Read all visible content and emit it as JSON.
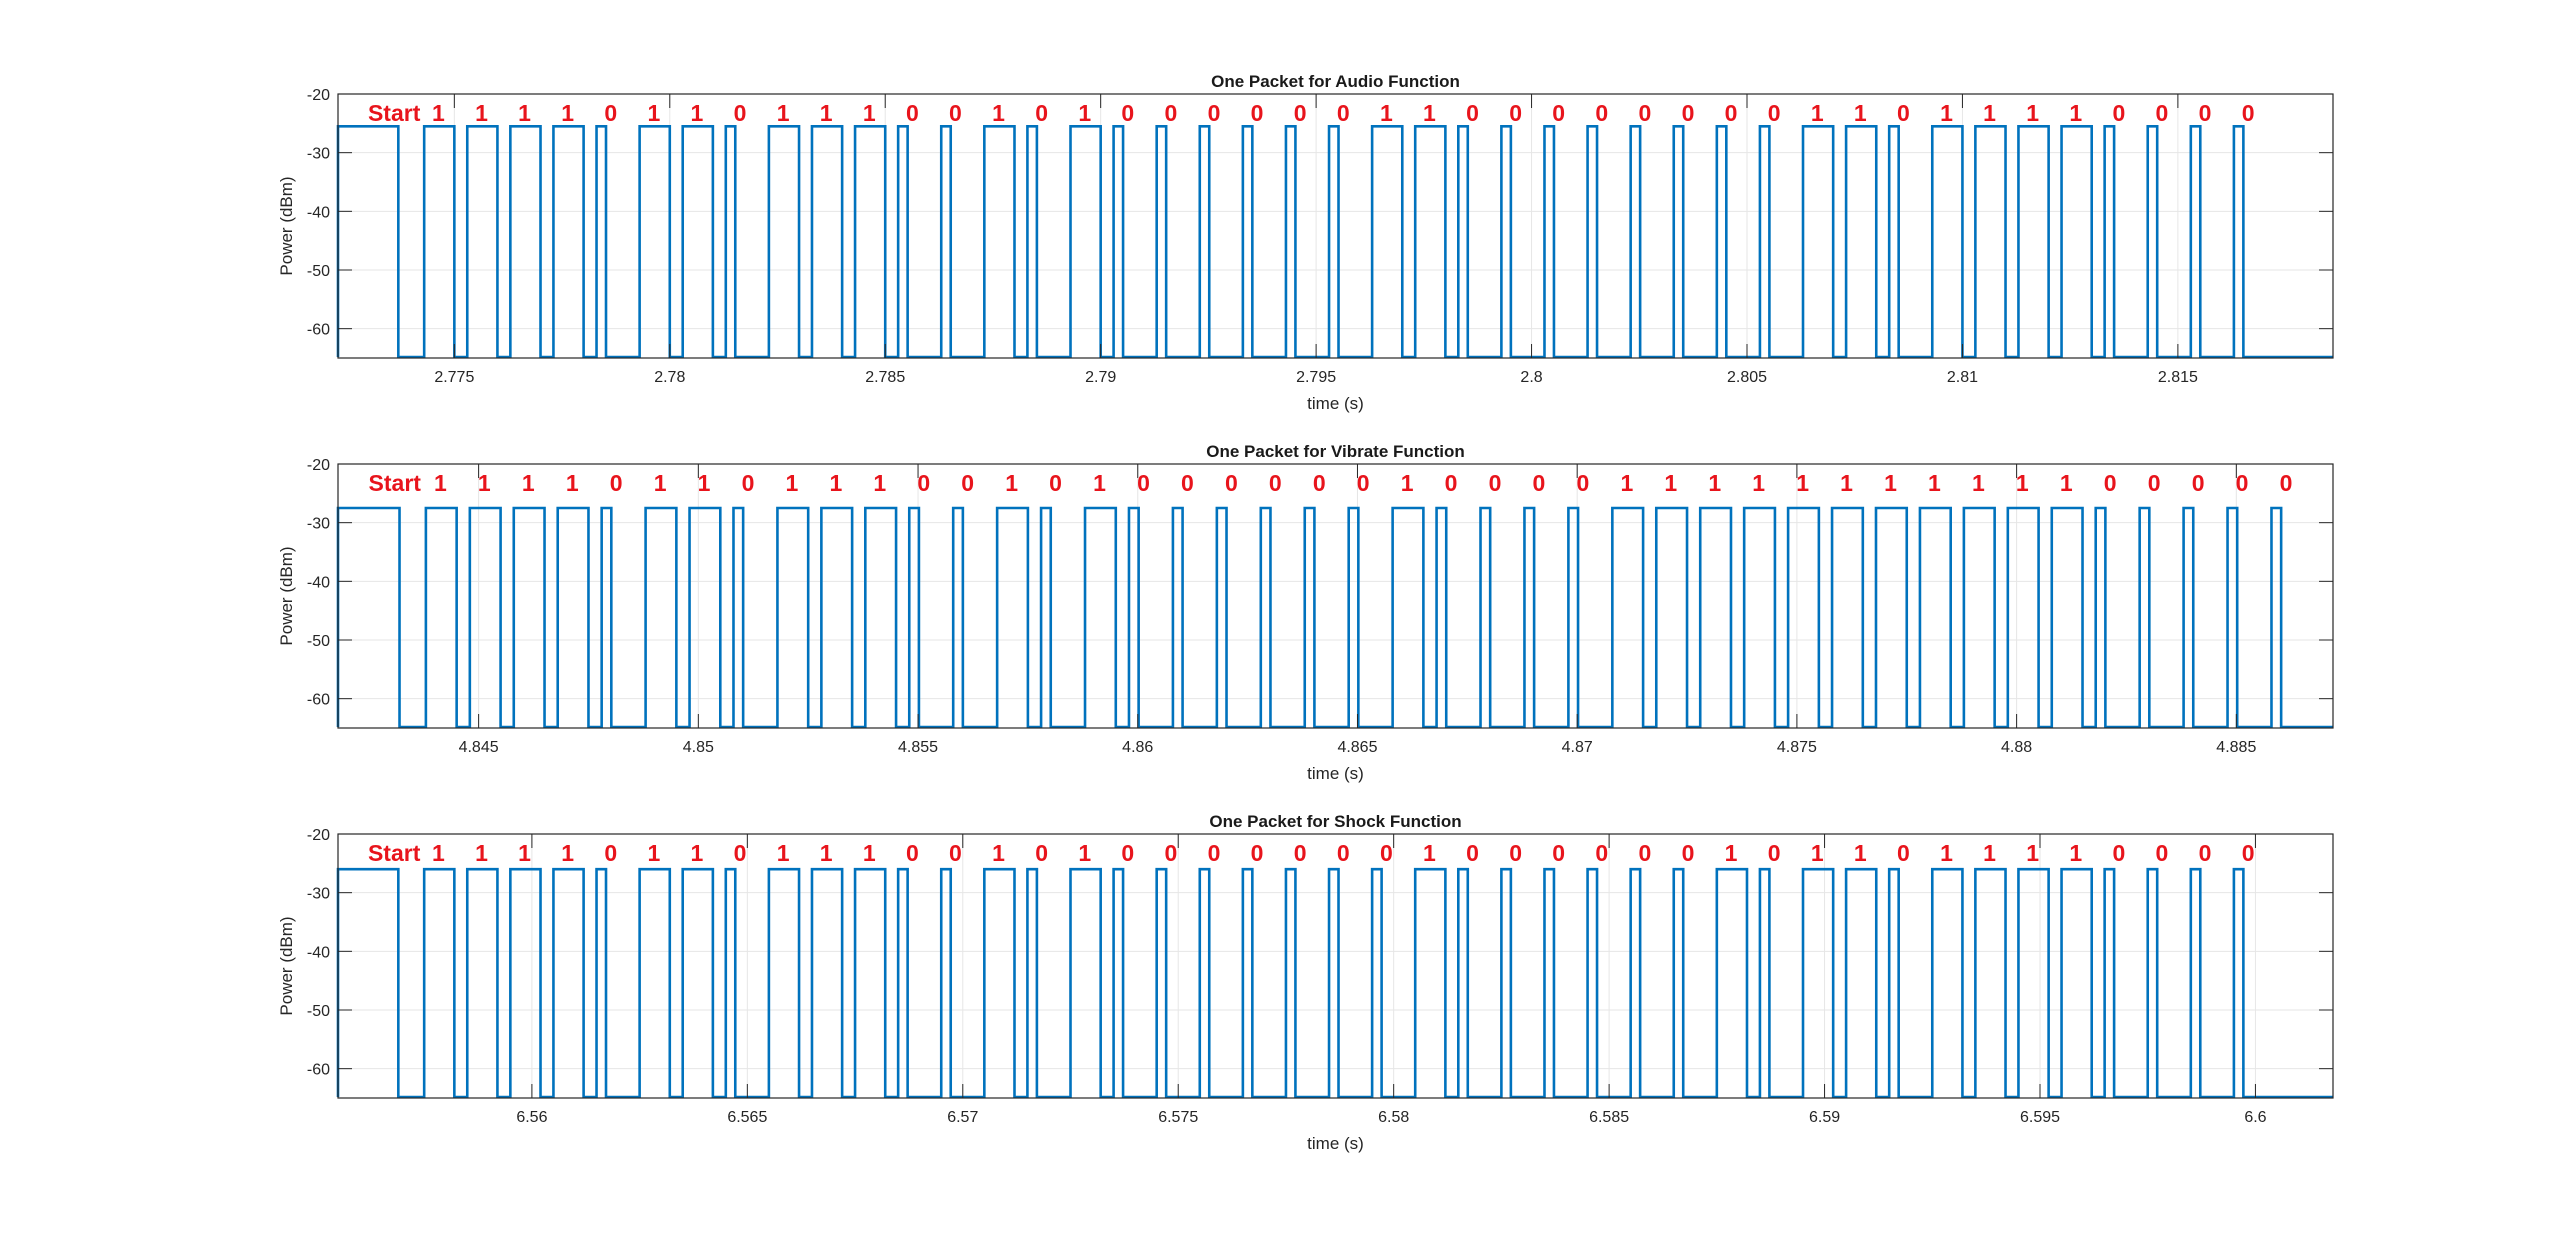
{
  "chart_data": [
    {
      "type": "line",
      "title": "One Packet for Audio Function",
      "xlabel": "time (s)",
      "ylabel": "Power (dBm)",
      "xlim": [
        2.7723,
        2.8186
      ],
      "ylim": [
        -65,
        -20
      ],
      "xticks": [
        2.775,
        2.78,
        2.785,
        2.79,
        2.795,
        2.8,
        2.805,
        2.81,
        2.815
      ],
      "xtick_labels": [
        "2.775",
        "2.78",
        "2.785",
        "2.79",
        "2.795",
        "2.8",
        "2.805",
        "2.81",
        "2.815"
      ],
      "yticks": [
        -60,
        -50,
        -40,
        -30,
        -20
      ],
      "ytick_labels": [
        "-60",
        "-50",
        "-40",
        "-30",
        "-20"
      ],
      "high_level": -25.5,
      "low_level": -65,
      "series_color": "#0072bd",
      "start_label": "Start",
      "start_pulse": [
        2.7723,
        2.7737
      ],
      "bit_period": 0.001,
      "first_bit_time": 2.7743,
      "bits": [
        "1",
        "1",
        "1",
        "1",
        "0",
        "1",
        "1",
        "0",
        "1",
        "1",
        "1",
        "0",
        "0",
        "1",
        "0",
        "1",
        "0",
        "0",
        "0",
        "0",
        "0",
        "0",
        "1",
        "1",
        "0",
        "0",
        "0",
        "0",
        "0",
        "0",
        "0",
        "0",
        "1",
        "1",
        "0",
        "1",
        "1",
        "1",
        "1",
        "0",
        "0",
        "0",
        "0"
      ]
    },
    {
      "type": "line",
      "title": "One Packet for Vibrate Function",
      "xlabel": "time (s)",
      "ylabel": "Power (dBm)",
      "xlim": [
        4.8418,
        4.8872
      ],
      "ylim": [
        -65,
        -20
      ],
      "xticks": [
        4.845,
        4.85,
        4.855,
        4.86,
        4.865,
        4.87,
        4.875,
        4.88,
        4.885
      ],
      "xtick_labels": [
        "4.845",
        "4.85",
        "4.855",
        "4.86",
        "4.865",
        "4.87",
        "4.875",
        "4.88",
        "4.885"
      ],
      "yticks": [
        -60,
        -50,
        -40,
        -30,
        -20
      ],
      "ytick_labels": [
        "-60",
        "-50",
        "-40",
        "-30",
        "-20"
      ],
      "high_level": -27.5,
      "low_level": -65,
      "series_color": "#0072bd",
      "start_label": "Start",
      "start_pulse": [
        4.8418,
        4.8432
      ],
      "bit_period": 0.001,
      "first_bit_time": 4.8438,
      "bits": [
        "1",
        "1",
        "1",
        "1",
        "0",
        "1",
        "1",
        "0",
        "1",
        "1",
        "1",
        "0",
        "0",
        "1",
        "0",
        "1",
        "0",
        "0",
        "0",
        "0",
        "0",
        "0",
        "1",
        "0",
        "0",
        "0",
        "0",
        "1",
        "1",
        "1",
        "1",
        "1",
        "1",
        "1",
        "1",
        "1",
        "1",
        "1",
        "0",
        "0",
        "0",
        "0",
        "0"
      ]
    },
    {
      "type": "line",
      "title": "One Packet for Shock Function",
      "xlabel": "time (s)",
      "ylabel": "Power (dBm)",
      "xlim": [
        6.5555,
        6.6018
      ],
      "ylim": [
        -65,
        -20
      ],
      "xticks": [
        6.56,
        6.565,
        6.57,
        6.575,
        6.58,
        6.585,
        6.59,
        6.595,
        6.6
      ],
      "xtick_labels": [
        "6.56",
        "6.565",
        "6.57",
        "6.575",
        "6.58",
        "6.585",
        "6.59",
        "6.595",
        "6.6"
      ],
      "yticks": [
        -60,
        -50,
        -40,
        -30,
        -20
      ],
      "ytick_labels": [
        "-60",
        "-50",
        "-40",
        "-30",
        "-20"
      ],
      "high_level": -26,
      "low_level": -65,
      "series_color": "#0072bd",
      "start_label": "Start",
      "start_pulse": [
        6.5555,
        6.5569
      ],
      "bit_period": 0.001,
      "first_bit_time": 6.5575,
      "bits": [
        "1",
        "1",
        "1",
        "1",
        "0",
        "1",
        "1",
        "0",
        "1",
        "1",
        "1",
        "0",
        "0",
        "1",
        "0",
        "1",
        "0",
        "0",
        "0",
        "0",
        "0",
        "0",
        "0",
        "1",
        "0",
        "0",
        "0",
        "0",
        "0",
        "0",
        "1",
        "0",
        "1",
        "1",
        "0",
        "1",
        "1",
        "1",
        "1",
        "0",
        "0",
        "0",
        "0"
      ]
    }
  ]
}
